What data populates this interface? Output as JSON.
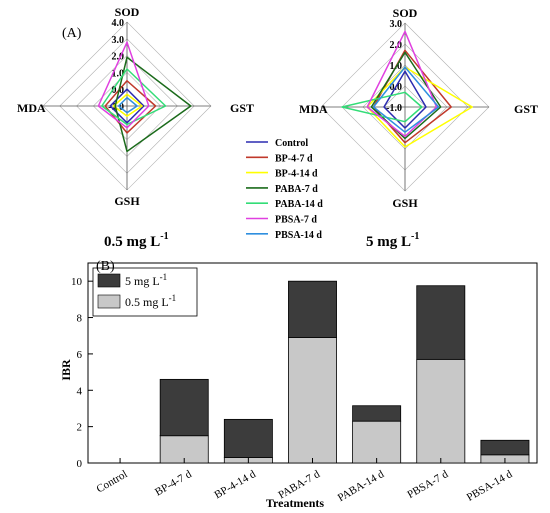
{
  "chart_data": [
    {
      "type": "radar",
      "panel_label": "(A)",
      "subtitle": "0.5 mg L",
      "subtitle_sup": "-1",
      "axes": [
        "SOD",
        "GST",
        "GSH",
        "MDA"
      ],
      "rlim": [
        -1.0,
        4.0
      ],
      "ticks": [
        "-1.0",
        "0.0",
        "1.0",
        "2.0",
        "3.0",
        "4.0"
      ],
      "series": [
        {
          "name": "Control",
          "color": "#2b2bb0",
          "values": [
            0.0,
            0.0,
            0.0,
            0.0
          ]
        },
        {
          "name": "BP-4-7 d",
          "color": "#c0392b",
          "values": [
            0.5,
            0.7,
            0.6,
            0.3
          ]
        },
        {
          "name": "BP-4-14 d",
          "color": "#ffff00",
          "values": [
            -0.3,
            -0.1,
            -0.4,
            -0.2
          ]
        },
        {
          "name": "PABA-7 d",
          "color": "#1b6b1b",
          "values": [
            1.9,
            2.8,
            1.7,
            -0.3
          ]
        },
        {
          "name": "PABA-14 d",
          "color": "#33dd77",
          "values": [
            1.2,
            1.3,
            0.1,
            0.5
          ]
        },
        {
          "name": "PBSA-7 d",
          "color": "#e040e0",
          "values": [
            2.8,
            0.3,
            0.3,
            0.7
          ]
        },
        {
          "name": "PBSA-14 d",
          "color": "#2f8fdf",
          "values": [
            -0.5,
            -0.4,
            -0.6,
            -0.5
          ]
        }
      ]
    },
    {
      "type": "radar",
      "subtitle": "5 mg L",
      "subtitle_sup": "-1",
      "axes": [
        "SOD",
        "GST",
        "GSH",
        "MDA"
      ],
      "rlim": [
        -1.0,
        3.0
      ],
      "ticks": [
        "-1.0",
        "0.0",
        "1.0",
        "2.0",
        "3.0"
      ],
      "series": [
        {
          "name": "Control",
          "color": "#2b2bb0",
          "values": [
            0.7,
            0.0,
            0.0,
            0.0
          ]
        },
        {
          "name": "BP-4-7 d",
          "color": "#c0392b",
          "values": [
            1.7,
            1.2,
            0.7,
            0.5
          ]
        },
        {
          "name": "BP-4-14 d",
          "color": "#ffff00",
          "values": [
            0.9,
            2.2,
            0.9,
            0.8
          ]
        },
        {
          "name": "PABA-7 d",
          "color": "#1b6b1b",
          "values": [
            1.6,
            0.7,
            0.5,
            0.6
          ]
        },
        {
          "name": "PABA-14 d",
          "color": "#33dd77",
          "values": [
            -0.3,
            -0.2,
            -0.3,
            2.0
          ]
        },
        {
          "name": "PBSA-7 d",
          "color": "#e040e0",
          "values": [
            2.6,
            0.5,
            0.4,
            0.8
          ]
        },
        {
          "name": "PBSA-14 d",
          "color": "#2f8fdf",
          "values": [
            0.9,
            0.6,
            0.2,
            0.5
          ]
        }
      ]
    },
    {
      "type": "bar",
      "stacked": true,
      "panel_label": "(B)",
      "categories": [
        "Control",
        "BP-4-7 d",
        "BP-4-14 d",
        "PABA-7 d",
        "PABA-14 d",
        "PBSA-7 d",
        "PBSA-14 d"
      ],
      "series": [
        {
          "name": "0.5 mg L",
          "name_sup": "-1",
          "color": "#c8c8c8",
          "values": [
            0,
            1.5,
            0.3,
            6.9,
            2.3,
            5.7,
            0.45
          ]
        },
        {
          "name": "5 mg L",
          "name_sup": "-1",
          "color": "#3c3c3c",
          "values": [
            0,
            3.1,
            2.1,
            3.1,
            0.85,
            4.05,
            0.8
          ]
        }
      ],
      "xlabel": "Treatments",
      "ylabel": "IBR",
      "ylim": [
        0,
        11
      ],
      "yticks": [
        "0",
        "2",
        "4",
        "6",
        "8",
        "10"
      ],
      "legend_position": "top-left"
    }
  ]
}
